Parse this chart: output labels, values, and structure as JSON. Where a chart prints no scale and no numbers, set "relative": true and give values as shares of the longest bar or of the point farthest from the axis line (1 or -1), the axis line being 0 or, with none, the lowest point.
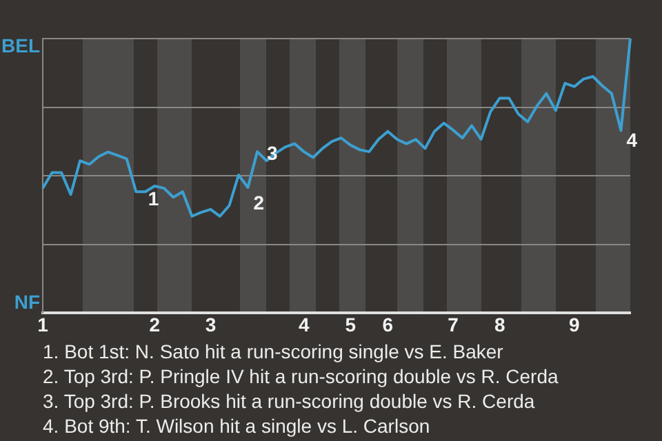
{
  "chart_data": {
    "type": "line",
    "relative": true,
    "categories": [
      "1",
      null,
      null,
      null,
      null,
      null,
      null,
      null,
      null,
      null,
      null,
      null,
      "2",
      null,
      null,
      null,
      null,
      null,
      "3",
      null,
      null,
      null,
      null,
      null,
      null,
      null,
      null,
      null,
      "4",
      null,
      null,
      null,
      null,
      "5",
      null,
      null,
      null,
      "6",
      null,
      null,
      null,
      null,
      null,
      null,
      "7",
      null,
      null,
      null,
      null,
      "8",
      null,
      null,
      null,
      null,
      null,
      null,
      null,
      "9",
      null,
      null,
      null,
      null,
      null,
      null
    ],
    "series": [
      {
        "color": "#3d9fd0",
        "values": [
          0.455,
          0.512,
          0.512,
          0.432,
          0.555,
          0.542,
          0.57,
          0.587,
          0.575,
          0.562,
          0.442,
          0.442,
          0.463,
          0.455,
          0.422,
          0.442,
          0.353,
          0.367,
          0.378,
          0.353,
          0.392,
          0.503,
          0.458,
          0.588,
          0.555,
          0.583,
          0.605,
          0.617,
          0.588,
          0.567,
          0.6,
          0.625,
          0.638,
          0.612,
          0.595,
          0.588,
          0.633,
          0.662,
          0.633,
          0.617,
          0.633,
          0.6,
          0.662,
          0.692,
          0.667,
          0.638,
          0.683,
          0.633,
          0.733,
          0.783,
          0.783,
          0.725,
          0.697,
          0.755,
          0.8,
          0.738,
          0.837,
          0.825,
          0.853,
          0.862,
          0.828,
          0.8,
          0.665,
          1
        ]
      }
    ],
    "grid": "y",
    "marker": "none",
    "line_style": "solid",
    "annotations": [
      "BEL",
      "NF",
      "1",
      "2",
      "3",
      "4",
      "1. Bot 1st: N. Sato hit a run-scoring single vs E. Baker",
      "2. Top 3rd: P. Pringle IV hit a run-scoring double vs R. Cerda",
      "3. Top 3rd: P. Brooks hit a run-scoring double vs R. Cerda",
      "4. Bot 9th: T. Wilson hit a single vs L. Carlson"
    ]
  }
}
